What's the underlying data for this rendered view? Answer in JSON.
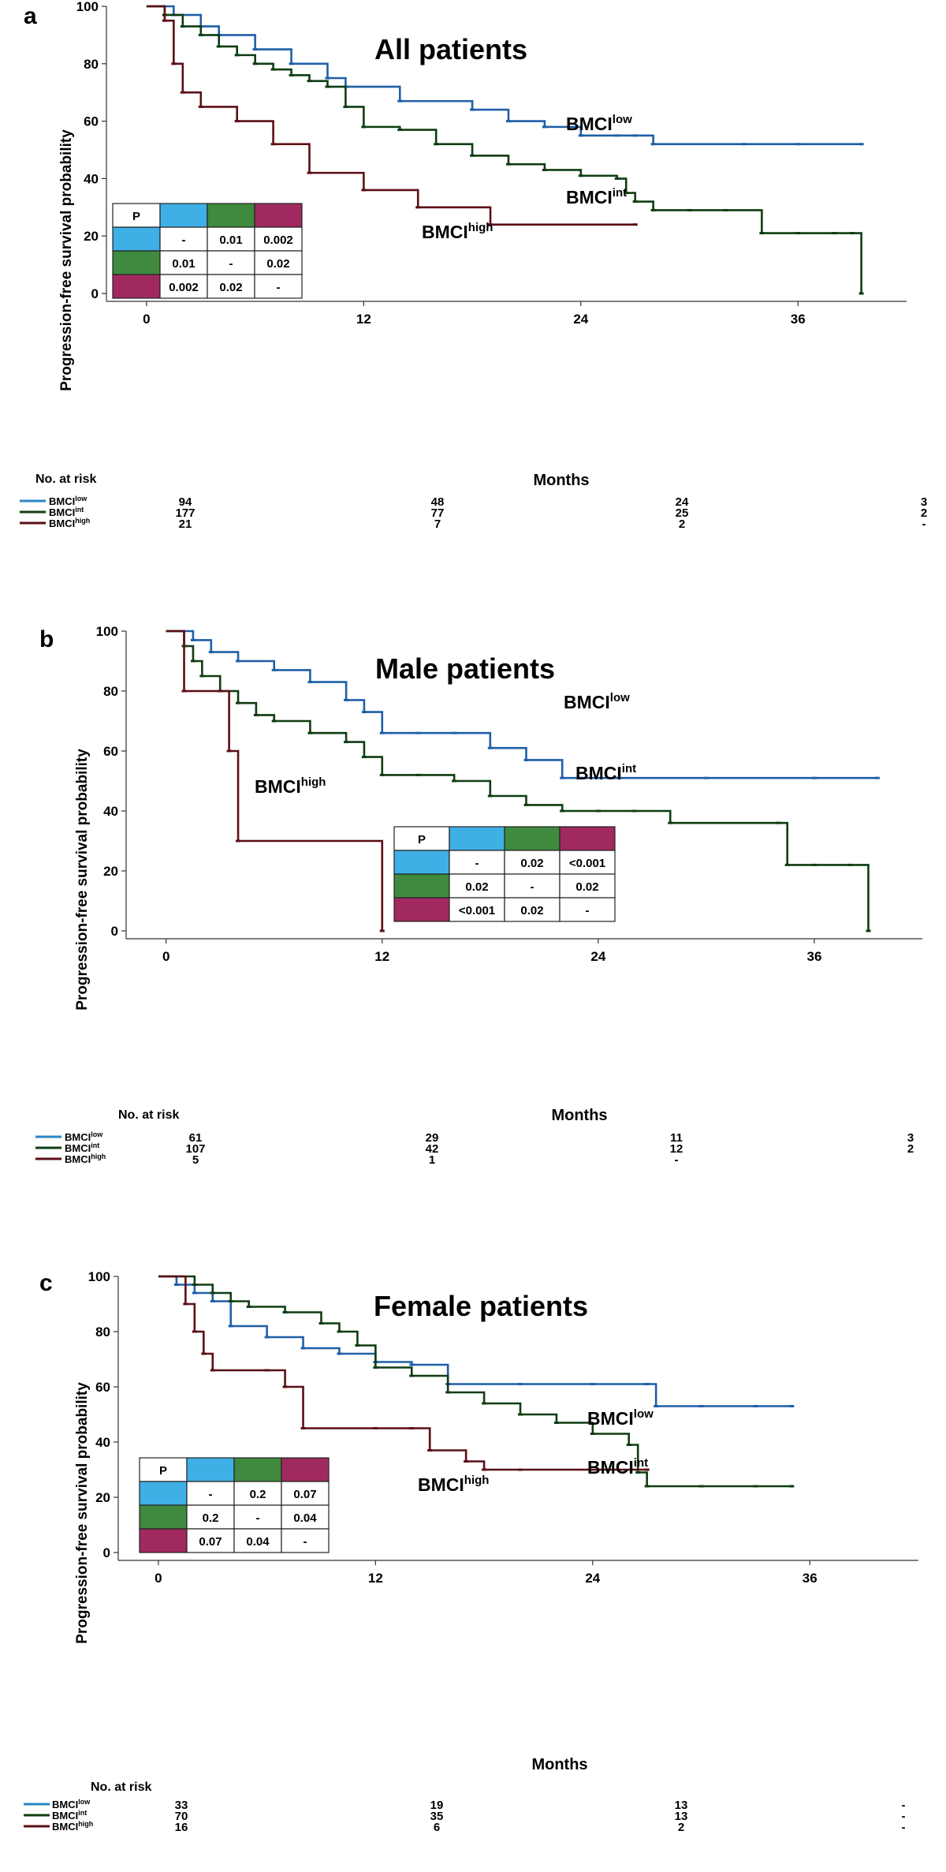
{
  "chart_data": [
    {
      "type": "line",
      "panel_letter": "a",
      "title": "All patients",
      "xlabel": "Months",
      "ylabel": "Progression-free survival probability",
      "xlim": [
        -2,
        42
      ],
      "ylim": [
        0,
        100
      ],
      "xticks": [
        0,
        12,
        24,
        36
      ],
      "yticks": [
        0,
        20,
        40,
        60,
        80,
        100
      ],
      "colors": {
        "low": "#1f5fa8",
        "int": "#0f3d12",
        "high": "#5c0f16"
      },
      "series": [
        {
          "key": "low",
          "name": "BMCI",
          "sup": "low",
          "x": [
            0,
            1.5,
            3,
            4,
            6,
            8,
            10,
            11,
            14,
            18,
            20,
            22,
            24,
            26,
            27,
            28,
            33,
            36,
            39.5
          ],
          "y": [
            100,
            97,
            93,
            90,
            85,
            80,
            75,
            72,
            67,
            64,
            60,
            58,
            55,
            55,
            55,
            52,
            52,
            52,
            52
          ]
        },
        {
          "key": "int",
          "name": "BMCI",
          "sup": "int",
          "x": [
            0,
            1,
            2,
            3,
            4,
            5,
            6,
            7,
            8,
            9,
            10,
            11,
            12,
            14,
            16,
            18,
            20,
            22,
            24,
            26,
            26.5,
            27,
            28,
            30,
            32,
            34,
            36,
            38,
            39,
            39.5
          ],
          "y": [
            100,
            97,
            93,
            90,
            86,
            83,
            80,
            78,
            76,
            74,
            72,
            65,
            58,
            57,
            52,
            48,
            45,
            43,
            41,
            40,
            35,
            32,
            29,
            29,
            29,
            21,
            21,
            21,
            21,
            0
          ]
        },
        {
          "key": "high",
          "name": "BMCI",
          "sup": "high",
          "x": [
            0,
            1,
            1.5,
            2,
            3,
            5,
            7,
            9,
            12,
            15,
            19,
            27
          ],
          "y": [
            100,
            95,
            80,
            70,
            65,
            60,
            52,
            42,
            36,
            30,
            24,
            24
          ]
        }
      ],
      "pvalue_table": {
        "corner": "P",
        "order": [
          "low",
          "int",
          "high"
        ],
        "rows": [
          [
            "-",
            "0.01",
            "0.002"
          ],
          [
            "0.01",
            "-",
            "0.02"
          ],
          [
            "0.002",
            "0.02",
            "-"
          ]
        ]
      },
      "risk_table": {
        "header": "No. at risk",
        "times": [
          0,
          12,
          24,
          36
        ],
        "rows": [
          {
            "key": "low",
            "name": "BMCI",
            "sup": "low",
            "counts": [
              "94",
              "48",
              "24",
              "3"
            ]
          },
          {
            "key": "int",
            "name": "BMCI",
            "sup": "int",
            "counts": [
              "177",
              "77",
              "25",
              "2"
            ]
          },
          {
            "key": "high",
            "name": "BMCI",
            "sup": "high",
            "counts": [
              "21",
              "7",
              "2",
              "-"
            ]
          }
        ]
      }
    },
    {
      "type": "line",
      "panel_letter": "b",
      "title": "Male patients",
      "xlabel": "Months",
      "ylabel": "Progression-free survival probability",
      "xlim": [
        -2,
        42
      ],
      "ylim": [
        0,
        100
      ],
      "xticks": [
        0,
        12,
        24,
        36
      ],
      "yticks": [
        0,
        20,
        40,
        60,
        80,
        100
      ],
      "colors": {
        "low": "#1f5fa8",
        "int": "#0f3d12",
        "high": "#5c0f16"
      },
      "series": [
        {
          "key": "low",
          "name": "BMCI",
          "sup": "low",
          "x": [
            0,
            1.5,
            2.5,
            4,
            6,
            8,
            10,
            11,
            12,
            14,
            16,
            18,
            20,
            22,
            23,
            25,
            30,
            36,
            39.5
          ],
          "y": [
            100,
            97,
            93,
            90,
            87,
            83,
            77,
            73,
            66,
            66,
            66,
            61,
            57,
            51,
            51,
            51,
            51,
            51,
            51
          ]
        },
        {
          "key": "int",
          "name": "BMCI",
          "sup": "int",
          "x": [
            0,
            1,
            1.5,
            2,
            3,
            4,
            5,
            6,
            8,
            10,
            11,
            12,
            14,
            16,
            18,
            20,
            22,
            24,
            26,
            28,
            34,
            34.5,
            36,
            38,
            39
          ],
          "y": [
            100,
            95,
            90,
            85,
            80,
            76,
            72,
            70,
            66,
            63,
            58,
            52,
            52,
            50,
            45,
            42,
            40,
            40,
            40,
            36,
            36,
            22,
            22,
            22,
            0
          ]
        },
        {
          "key": "high",
          "name": "BMCI",
          "sup": "high",
          "x": [
            0,
            1,
            3,
            3.5,
            4,
            12
          ],
          "y": [
            100,
            80,
            80,
            60,
            30,
            0
          ]
        }
      ],
      "pvalue_table": {
        "corner": "P",
        "order": [
          "low",
          "int",
          "high"
        ],
        "rows": [
          [
            "-",
            "0.02",
            "<0.001"
          ],
          [
            "0.02",
            "-",
            "0.02"
          ],
          [
            "<0.001",
            "0.02",
            "-"
          ]
        ]
      },
      "risk_table": {
        "header": "No. at risk",
        "times": [
          0,
          12,
          24,
          36
        ],
        "rows": [
          {
            "key": "low",
            "name": "BMCI",
            "sup": "low",
            "counts": [
              "61",
              "29",
              "11",
              "3"
            ]
          },
          {
            "key": "int",
            "name": "BMCI",
            "sup": "int",
            "counts": [
              "107",
              "42",
              "12",
              "2"
            ]
          },
          {
            "key": "high",
            "name": "BMCI",
            "sup": "high",
            "counts": [
              "5",
              "1",
              "-",
              ""
            ]
          }
        ]
      }
    },
    {
      "type": "line",
      "panel_letter": "c",
      "title": "Female patients",
      "xlabel": "Months",
      "ylabel": "Progression-free survival probability",
      "xlim": [
        -2,
        42
      ],
      "ylim": [
        0,
        100
      ],
      "xticks": [
        0,
        12,
        24,
        36
      ],
      "yticks": [
        0,
        20,
        40,
        60,
        80,
        100
      ],
      "colors": {
        "low": "#1f5fa8",
        "int": "#0f3d12",
        "high": "#5c0f16"
      },
      "series": [
        {
          "key": "low",
          "name": "BMCI",
          "sup": "low",
          "x": [
            0,
            1,
            2,
            3,
            4,
            6,
            8,
            10,
            12,
            14,
            16,
            20,
            24,
            27,
            27.5,
            30,
            33,
            35
          ],
          "y": [
            100,
            97,
            94,
            91,
            82,
            78,
            74,
            72,
            69,
            68,
            61,
            61,
            61,
            61,
            53,
            53,
            53,
            53
          ]
        },
        {
          "key": "int",
          "name": "BMCI",
          "sup": "int",
          "x": [
            0,
            2,
            3,
            4,
            5,
            7,
            9,
            10,
            11,
            12,
            14,
            16,
            18,
            20,
            22,
            24,
            26,
            26.5,
            27,
            30,
            33,
            35
          ],
          "y": [
            100,
            97,
            94,
            91,
            89,
            87,
            83,
            80,
            75,
            67,
            64,
            58,
            54,
            50,
            47,
            43,
            39,
            29,
            24,
            24,
            24,
            24
          ]
        },
        {
          "key": "high",
          "name": "BMCI",
          "sup": "high",
          "x": [
            0,
            1.5,
            2,
            2.5,
            3,
            6,
            7,
            8,
            12,
            14,
            15,
            17,
            18,
            20,
            27
          ],
          "y": [
            100,
            90,
            80,
            72,
            66,
            66,
            60,
            45,
            45,
            45,
            37,
            33,
            30,
            30,
            30
          ]
        }
      ],
      "pvalue_table": {
        "corner": "P",
        "order": [
          "low",
          "int",
          "high"
        ],
        "rows": [
          [
            "-",
            "0.2",
            "0.07"
          ],
          [
            "0.2",
            "-",
            "0.04"
          ],
          [
            "0.07",
            "0.04",
            "-"
          ]
        ]
      },
      "risk_table": {
        "header": "No. at risk",
        "times": [
          0,
          12,
          24,
          36
        ],
        "rows": [
          {
            "key": "low",
            "name": "BMCI",
            "sup": "low",
            "counts": [
              "33",
              "19",
              "13",
              "-"
            ]
          },
          {
            "key": "int",
            "name": "BMCI",
            "sup": "int",
            "counts": [
              "70",
              "35",
              "13",
              "-"
            ]
          },
          {
            "key": "high",
            "name": "BMCI",
            "sup": "high",
            "counts": [
              "16",
              "6",
              "2",
              "-"
            ]
          }
        ]
      }
    }
  ],
  "swatch_colors": {
    "low": "#3fb0e6",
    "int": "#3f8a3f",
    "high": "#a02a60"
  },
  "risk_line_colors": {
    "low": "#2a86c4",
    "int": "#0f3d12",
    "high": "#5c0f16"
  }
}
